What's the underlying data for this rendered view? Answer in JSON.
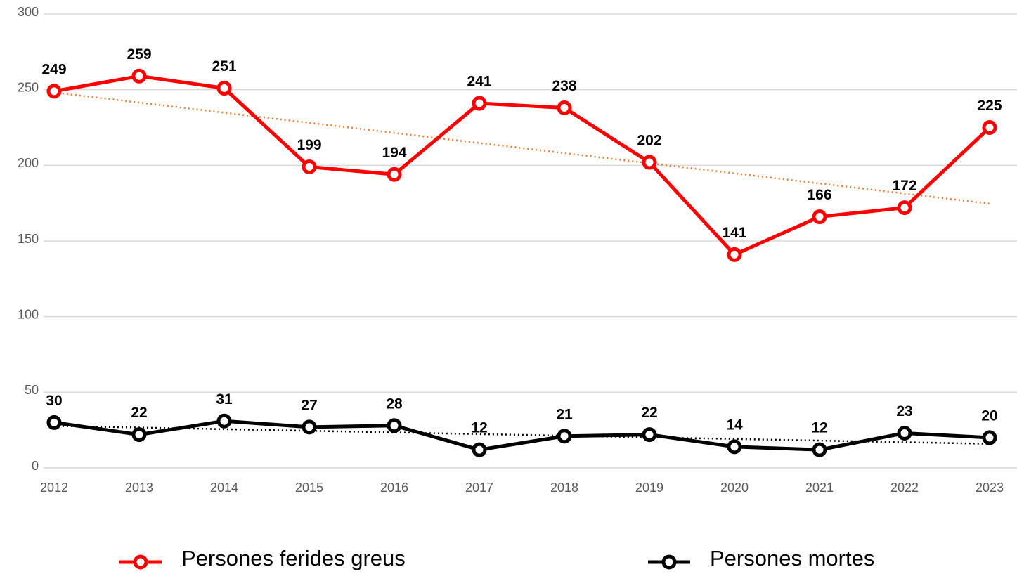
{
  "chart_data": {
    "type": "line",
    "x": [
      "2012",
      "2013",
      "2014",
      "2015",
      "2016",
      "2017",
      "2018",
      "2019",
      "2020",
      "2021",
      "2022",
      "2023"
    ],
    "series": [
      {
        "name": "Persones ferides greus",
        "color": "#ff0000",
        "trendline_color": "#ed7d31",
        "values": [
          249,
          259,
          251,
          199,
          194,
          241,
          238,
          202,
          141,
          166,
          172,
          225
        ]
      },
      {
        "name": "Persones mortes",
        "color": "#000000",
        "trendline_color": "#000000",
        "values": [
          30,
          22,
          31,
          27,
          28,
          12,
          21,
          22,
          14,
          12,
          23,
          20
        ]
      }
    ],
    "ylim": [
      0,
      300
    ],
    "yticks": [
      0,
      50,
      100,
      150,
      200,
      250,
      300
    ],
    "grid": true,
    "trendline": true,
    "legend": "bottom"
  }
}
